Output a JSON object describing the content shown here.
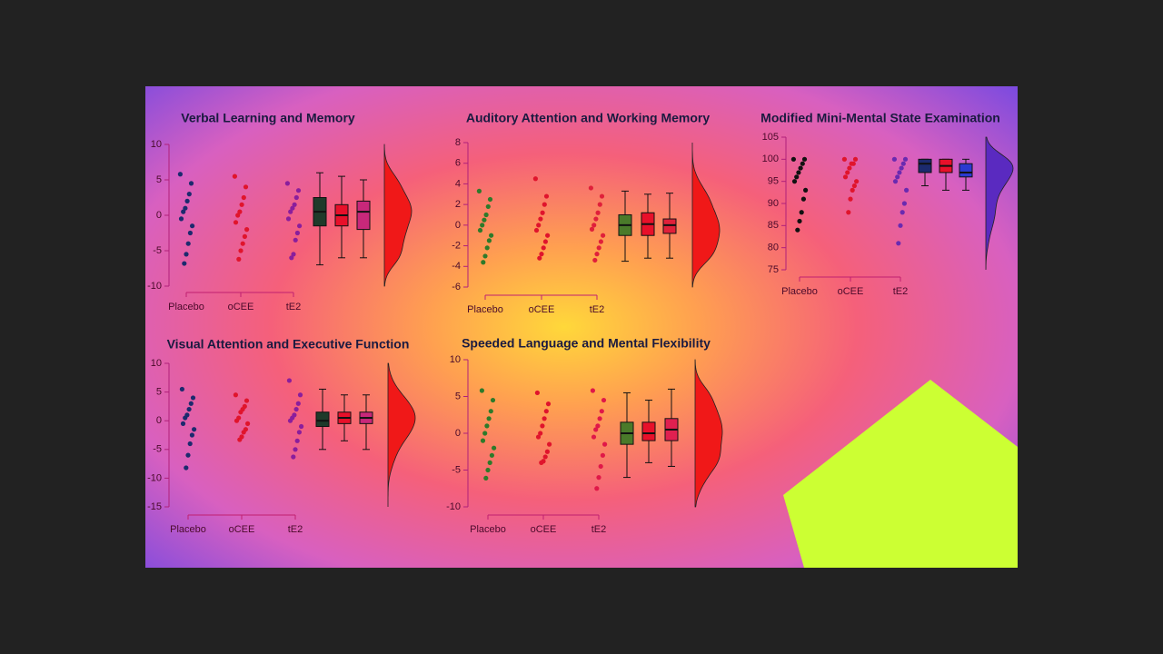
{
  "chart_data": [
    {
      "type": "raincloud",
      "title": "Verbal Learning and Memory",
      "categories": [
        "Placebo",
        "oCEE",
        "tE2"
      ],
      "ylim": [
        -10,
        10
      ],
      "yticks": [
        10,
        5,
        0,
        -5,
        -10
      ],
      "colors": [
        "#1c2a6e",
        "#e0142c",
        "#8a1e9c"
      ],
      "box_colors": [
        "#1f3a2a",
        "#e8102a",
        "#c8287a"
      ],
      "density_color": "#f01818",
      "points": [
        [
          5.8,
          4.5,
          3,
          2,
          1,
          0.5,
          -0.5,
          -1.5,
          -2.5,
          -4,
          -5.5,
          -6.8
        ],
        [
          5.5,
          4,
          2.5,
          1.5,
          0.5,
          0,
          -1,
          -2,
          -3,
          -4,
          -5,
          -6.2
        ],
        [
          4.5,
          3.5,
          2.5,
          1.5,
          1,
          0.5,
          -0.5,
          -1.5,
          -2.5,
          -3.5,
          -5.5,
          -6
        ]
      ],
      "boxes": [
        [
          -7,
          -1.5,
          0.5,
          2.5,
          6
        ],
        [
          -6,
          -1.5,
          0,
          1.5,
          5.5
        ],
        [
          -6,
          -2,
          0.5,
          2,
          5
        ]
      ]
    },
    {
      "type": "raincloud",
      "title": "Auditory Attention and Working Memory",
      "categories": [
        "Placebo",
        "oCEE",
        "tE2"
      ],
      "ylim": [
        -6,
        8
      ],
      "yticks": [
        8,
        6,
        4,
        2,
        0,
        -2,
        -4,
        -6
      ],
      "colors": [
        "#2e7a2a",
        "#e0142c",
        "#e0203a"
      ],
      "box_colors": [
        "#4a7a2a",
        "#e8102a",
        "#e0203a"
      ],
      "density_color": "#f01818",
      "points": [
        [
          3.3,
          2.5,
          1.8,
          1,
          0.5,
          0,
          -0.5,
          -1,
          -1.5,
          -2.2,
          -3,
          -3.6
        ],
        [
          4.5,
          2.8,
          2,
          1.2,
          0.6,
          0,
          -0.5,
          -1,
          -1.6,
          -2.2,
          -2.8,
          -3.2
        ],
        [
          3.6,
          2.8,
          2,
          1.2,
          0.6,
          0,
          -0.4,
          -1,
          -1.6,
          -2.2,
          -2.8,
          -3.4
        ]
      ],
      "boxes": [
        [
          -3.5,
          -1,
          0,
          1,
          3.3
        ],
        [
          -3.2,
          -1,
          0.1,
          1.2,
          3
        ],
        [
          -3.2,
          -0.8,
          0,
          0.6,
          3.1
        ]
      ]
    },
    {
      "type": "raincloud",
      "title": "Modified Mini-Mental State Examination",
      "categories": [
        "Placebo",
        "oCEE",
        "tE2"
      ],
      "ylim": [
        75,
        105
      ],
      "yticks": [
        105,
        100,
        95,
        90,
        85,
        80,
        75
      ],
      "colors": [
        "#111111",
        "#e0142c",
        "#6a2ab0"
      ],
      "box_colors": [
        "#1c2a6e",
        "#e8102a",
        "#2a3ad0"
      ],
      "density_color": "#5a2ac0",
      "points": [
        [
          100,
          100,
          99,
          98,
          97,
          96,
          95,
          93,
          91,
          88,
          86,
          84
        ],
        [
          100,
          100,
          99,
          99,
          98,
          97,
          96,
          95,
          94,
          93,
          91,
          88
        ],
        [
          100,
          100,
          99,
          98,
          97,
          96,
          95,
          93,
          90,
          88,
          85,
          81
        ]
      ],
      "boxes": [
        [
          94,
          97,
          99,
          100,
          100
        ],
        [
          93,
          97,
          98.5,
          100,
          100
        ],
        [
          93,
          96,
          97,
          99,
          100
        ]
      ]
    },
    {
      "type": "raincloud",
      "title": "Visual Attention and Executive Function",
      "categories": [
        "Placebo",
        "oCEE",
        "tE2"
      ],
      "ylim": [
        -15,
        10
      ],
      "yticks": [
        10,
        5,
        0,
        -5,
        -10,
        -15
      ],
      "colors": [
        "#1c2a6e",
        "#e0142c",
        "#8a1e9c"
      ],
      "box_colors": [
        "#1f3a2a",
        "#e8102a",
        "#c8287a"
      ],
      "density_color": "#f01818",
      "points": [
        [
          5.5,
          4,
          3,
          2,
          1,
          0.5,
          -0.5,
          -1.5,
          -2.5,
          -4,
          -6,
          -8.2
        ],
        [
          4.5,
          3.5,
          2.5,
          2,
          1.5,
          0.5,
          0,
          -0.5,
          -1.5,
          -2,
          -2.8,
          -3.3
        ],
        [
          7,
          4.5,
          3,
          2,
          1,
          0.5,
          0,
          -1,
          -2,
          -3.5,
          -5,
          -6.3
        ]
      ],
      "boxes": [
        [
          -5,
          -1,
          0,
          1.5,
          5.5
        ],
        [
          -3.5,
          -0.5,
          0.5,
          1.5,
          4.5
        ],
        [
          -5,
          -0.5,
          0.5,
          1.5,
          4.5
        ]
      ]
    },
    {
      "type": "raincloud",
      "title": "Speeded Language and Mental Flexibility",
      "categories": [
        "Placebo",
        "oCEE",
        "tE2"
      ],
      "ylim": [
        -10,
        10
      ],
      "yticks": [
        10,
        5,
        0,
        -5,
        -10
      ],
      "colors": [
        "#2e7a2a",
        "#e0142c",
        "#e01848"
      ],
      "box_colors": [
        "#4a7a2a",
        "#e8102a",
        "#e02050"
      ],
      "density_color": "#f01818",
      "points": [
        [
          5.8,
          4.5,
          3,
          2,
          1,
          0,
          -1,
          -2,
          -3,
          -4,
          -5,
          -6.1
        ],
        [
          5.5,
          4,
          3,
          2,
          1,
          0,
          -0.5,
          -1.5,
          -2.5,
          -3.2,
          -3.8,
          -4
        ],
        [
          5.8,
          4.5,
          3,
          2,
          1,
          0.5,
          -0.5,
          -1.5,
          -3,
          -4.5,
          -6,
          -7.5
        ]
      ],
      "boxes": [
        [
          -6,
          -1.5,
          0,
          1.5,
          5.5
        ],
        [
          -4,
          -1,
          0,
          1.5,
          4.5
        ],
        [
          -4.5,
          -1,
          0.5,
          2,
          6
        ]
      ]
    }
  ]
}
